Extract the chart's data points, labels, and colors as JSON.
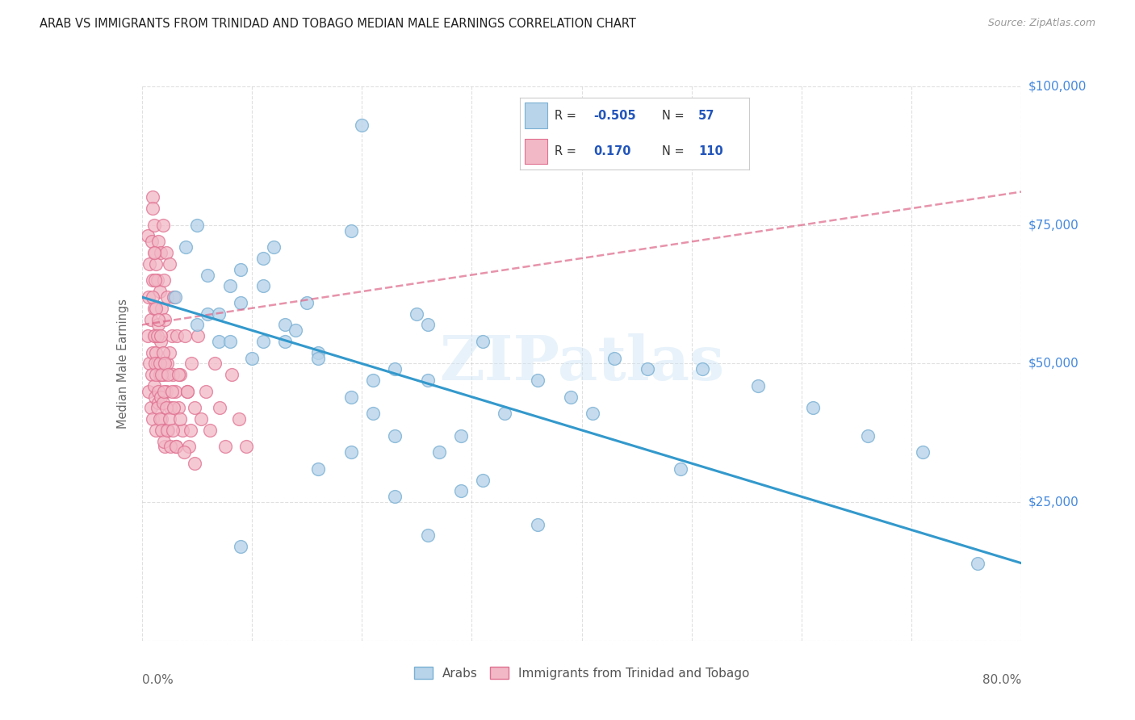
{
  "title": "ARAB VS IMMIGRANTS FROM TRINIDAD AND TOBAGO MEDIAN MALE EARNINGS CORRELATION CHART",
  "source": "Source: ZipAtlas.com",
  "ylabel": "Median Male Earnings",
  "xlim": [
    0,
    0.8
  ],
  "ylim": [
    0,
    100000
  ],
  "r_arab": -0.505,
  "n_arab": 57,
  "r_tt": 0.17,
  "n_tt": 110,
  "arab_fill_color": "#b8d4ea",
  "arab_edge_color": "#7ab0d4",
  "tt_fill_color": "#f2b8c6",
  "tt_edge_color": "#e07090",
  "arab_line_color": "#3399cc",
  "tt_line_color": "#dd6688",
  "tt_dash_color": "#ddaaaa",
  "legend_r_color": "#2255bb",
  "background_color": "#ffffff",
  "grid_color": "#cccccc",
  "arab_x": [
    0.2,
    0.05,
    0.12,
    0.09,
    0.11,
    0.15,
    0.06,
    0.13,
    0.19,
    0.07,
    0.1,
    0.08,
    0.14,
    0.16,
    0.23,
    0.26,
    0.11,
    0.21,
    0.16,
    0.19,
    0.26,
    0.31,
    0.36,
    0.41,
    0.39,
    0.46,
    0.51,
    0.56,
    0.61,
    0.66,
    0.71,
    0.76,
    0.49,
    0.43,
    0.33,
    0.29,
    0.27,
    0.21,
    0.23,
    0.19,
    0.16,
    0.29,
    0.31,
    0.36,
    0.23,
    0.26,
    0.09,
    0.13,
    0.05,
    0.07,
    0.09,
    0.08,
    0.06,
    0.11,
    0.04,
    0.03,
    0.25
  ],
  "arab_y": [
    93000,
    75000,
    71000,
    67000,
    64000,
    61000,
    59000,
    57000,
    74000,
    54000,
    51000,
    54000,
    56000,
    52000,
    49000,
    57000,
    54000,
    47000,
    51000,
    44000,
    47000,
    54000,
    47000,
    41000,
    44000,
    49000,
    49000,
    46000,
    42000,
    37000,
    34000,
    14000,
    31000,
    51000,
    41000,
    37000,
    34000,
    41000,
    37000,
    34000,
    31000,
    27000,
    29000,
    21000,
    26000,
    19000,
    17000,
    54000,
    57000,
    59000,
    61000,
    64000,
    66000,
    69000,
    71000,
    62000,
    59000
  ],
  "tt_x": [
    0.005,
    0.005,
    0.006,
    0.006,
    0.007,
    0.007,
    0.008,
    0.008,
    0.009,
    0.009,
    0.01,
    0.01,
    0.01,
    0.01,
    0.011,
    0.011,
    0.011,
    0.012,
    0.012,
    0.012,
    0.013,
    0.013,
    0.013,
    0.014,
    0.014,
    0.015,
    0.015,
    0.015,
    0.016,
    0.016,
    0.017,
    0.017,
    0.018,
    0.018,
    0.019,
    0.019,
    0.02,
    0.02,
    0.021,
    0.021,
    0.022,
    0.022,
    0.023,
    0.023,
    0.024,
    0.025,
    0.025,
    0.026,
    0.027,
    0.028,
    0.029,
    0.03,
    0.031,
    0.032,
    0.033,
    0.035,
    0.037,
    0.039,
    0.041,
    0.043,
    0.045,
    0.048,
    0.051,
    0.054,
    0.058,
    0.062,
    0.066,
    0.071,
    0.076,
    0.082,
    0.088,
    0.095,
    0.01,
    0.01,
    0.011,
    0.011,
    0.012,
    0.012,
    0.013,
    0.013,
    0.014,
    0.014,
    0.015,
    0.015,
    0.016,
    0.016,
    0.017,
    0.017,
    0.018,
    0.018,
    0.019,
    0.019,
    0.02,
    0.02,
    0.021,
    0.022,
    0.023,
    0.024,
    0.025,
    0.026,
    0.027,
    0.028,
    0.029,
    0.031,
    0.033,
    0.035,
    0.038,
    0.041,
    0.044,
    0.048
  ],
  "tt_y": [
    73000,
    55000,
    62000,
    45000,
    68000,
    50000,
    58000,
    42000,
    72000,
    48000,
    80000,
    65000,
    52000,
    40000,
    75000,
    60000,
    46000,
    70000,
    55000,
    44000,
    68000,
    52000,
    38000,
    65000,
    50000,
    72000,
    57000,
    43000,
    63000,
    48000,
    70000,
    54000,
    40000,
    60000,
    75000,
    50000,
    65000,
    48000,
    35000,
    58000,
    70000,
    45000,
    62000,
    50000,
    38000,
    68000,
    52000,
    42000,
    55000,
    48000,
    62000,
    45000,
    35000,
    55000,
    42000,
    48000,
    38000,
    55000,
    45000,
    35000,
    50000,
    42000,
    55000,
    40000,
    45000,
    38000,
    50000,
    42000,
    35000,
    48000,
    40000,
    35000,
    78000,
    62000,
    70000,
    55000,
    65000,
    50000,
    60000,
    48000,
    55000,
    42000,
    58000,
    45000,
    50000,
    40000,
    55000,
    44000,
    48000,
    38000,
    52000,
    43000,
    45000,
    36000,
    50000,
    42000,
    38000,
    48000,
    40000,
    35000,
    45000,
    38000,
    42000,
    35000,
    48000,
    40000,
    34000,
    45000,
    38000,
    32000
  ]
}
